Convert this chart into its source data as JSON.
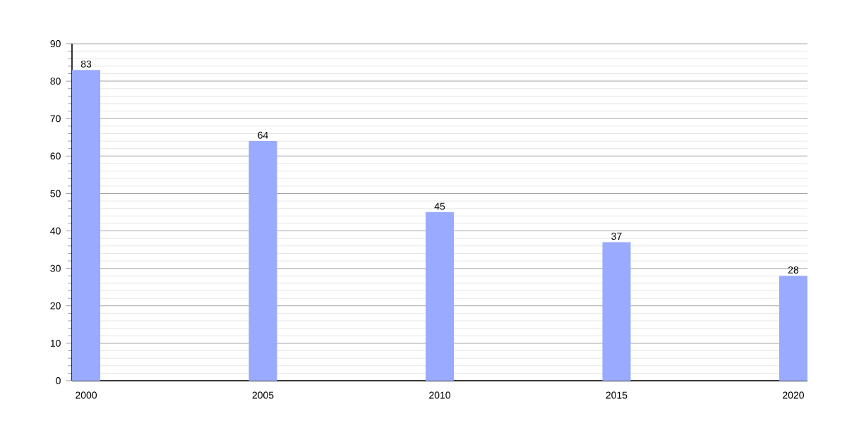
{
  "chart_data": {
    "type": "bar",
    "categories": [
      "2000",
      "2005",
      "2010",
      "2015",
      "2020"
    ],
    "values": [
      83,
      64,
      45,
      37,
      28
    ],
    "color": "#99aaff",
    "ylim": [
      0,
      90
    ],
    "yticks": [
      0,
      10,
      20,
      30,
      40,
      50,
      60,
      70,
      80,
      90
    ],
    "grid": "y",
    "data_labels": true
  }
}
